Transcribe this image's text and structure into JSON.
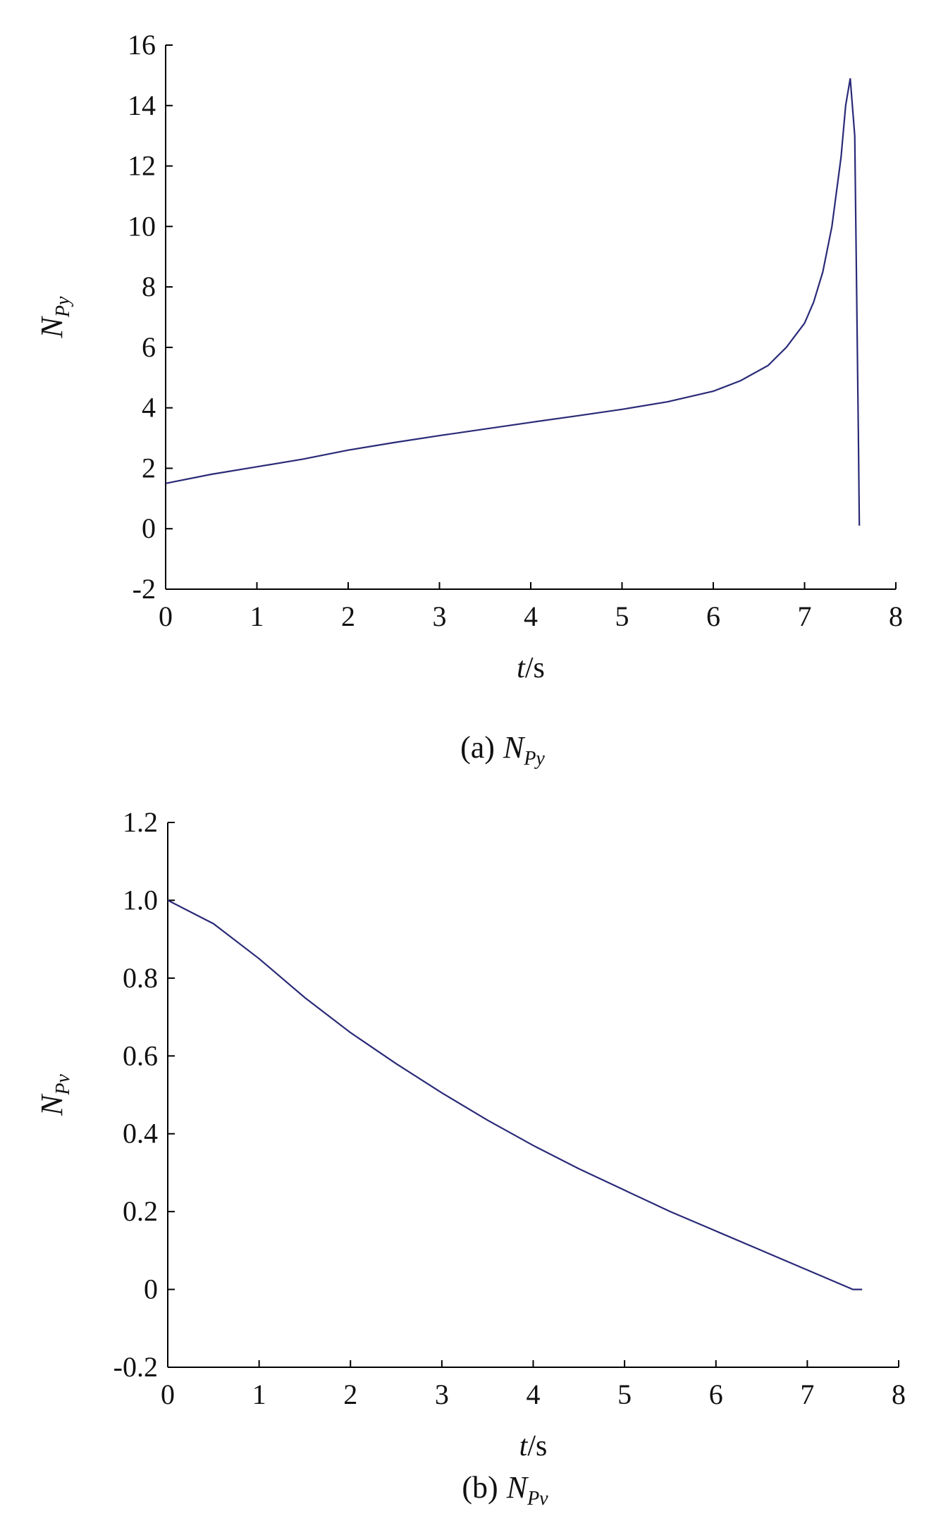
{
  "chart_data": [
    {
      "type": "line",
      "xlabel": {
        "var": "t",
        "unit": "/s"
      },
      "ylabel": {
        "main": "N",
        "sub": "Py"
      },
      "caption": {
        "prefix": "(a)",
        "main": "N",
        "sub": "Py"
      },
      "color": "#2a2a78",
      "xlim": [
        0,
        8
      ],
      "xticks": [
        0,
        1,
        2,
        3,
        4,
        5,
        6,
        7,
        8
      ],
      "ylim": [
        -2,
        16
      ],
      "yticks": [
        -2,
        0,
        2,
        4,
        6,
        8,
        10,
        12,
        14,
        16
      ],
      "x": [
        0,
        0.5,
        1,
        1.5,
        2,
        2.5,
        3,
        3.5,
        4,
        4.5,
        5,
        5.5,
        6,
        6.3,
        6.6,
        6.8,
        7,
        7.1,
        7.2,
        7.3,
        7.4,
        7.45,
        7.5,
        7.55,
        7.57,
        7.59,
        7.6
      ],
      "values": [
        1.5,
        1.8,
        2.05,
        2.3,
        2.6,
        2.85,
        3.08,
        3.3,
        3.52,
        3.73,
        3.95,
        4.2,
        4.55,
        4.9,
        5.4,
        6.0,
        6.8,
        7.5,
        8.5,
        10,
        12.3,
        14,
        14.9,
        13,
        8,
        3,
        0.1
      ]
    },
    {
      "type": "line",
      "xlabel": {
        "var": "t",
        "unit": "/s"
      },
      "ylabel": {
        "main": "N",
        "sub": "Pv"
      },
      "caption": {
        "prefix": "(b)",
        "main": "N",
        "sub": "Pv"
      },
      "color": "#2a2a78",
      "xlim": [
        0,
        8
      ],
      "xticks": [
        0,
        1,
        2,
        3,
        4,
        5,
        6,
        7,
        8
      ],
      "ylim": [
        -0.2,
        1.2
      ],
      "yticks": [
        -0.2,
        0,
        0.2,
        0.4,
        0.6,
        0.8,
        {
          "value": 1,
          "label": "1.0"
        },
        1.2
      ],
      "x": [
        0,
        0.5,
        1,
        1.5,
        2,
        2.5,
        3,
        3.5,
        4,
        4.5,
        5,
        5.5,
        6,
        6.5,
        7,
        7.5,
        7.6
      ],
      "values": [
        1.0,
        0.94,
        0.85,
        0.75,
        0.66,
        0.58,
        0.505,
        0.435,
        0.37,
        0.31,
        0.255,
        0.2,
        0.15,
        0.1,
        0.05,
        0.0,
        0.0
      ]
    }
  ]
}
